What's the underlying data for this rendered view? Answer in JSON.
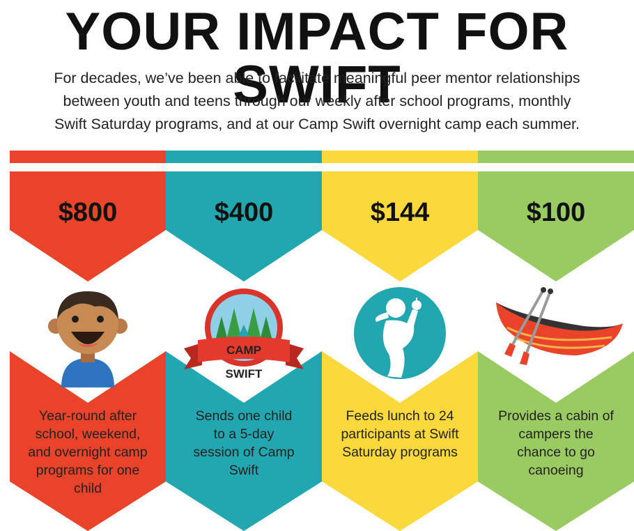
{
  "header": {
    "title": "YOUR IMPACT FOR SWIFT",
    "intro_lines": [
      "For decades, we’ve been able to facilitate meaningful peer mentor relationships",
      "between youth and teens through our weekly after school programs, monthly",
      "Swift Saturday programs, and at our Camp Swift overnight camp each summer."
    ]
  },
  "colors": {
    "red": "#e9432a",
    "teal": "#22a7b0",
    "yellow": "#fbd83c",
    "green": "#9acb62"
  },
  "tiers": [
    {
      "amount": "$800",
      "icon": "smiling-child-icon",
      "description_lines": [
        "Year-round after",
        "school, weekend,",
        "and overnight camp",
        "programs for one",
        "child"
      ]
    },
    {
      "amount": "$400",
      "icon": "camp-swift-badge-icon",
      "badge_lines": [
        "CAMP",
        "SWIFT"
      ],
      "description_lines": [
        "Sends one child",
        "to a 5-day",
        "session of Camp",
        "Swift"
      ]
    },
    {
      "amount": "$144",
      "icon": "person-eating-apple-icon",
      "description_lines": [
        "Feeds lunch to 24",
        "participants at Swift",
        "Saturday programs"
      ]
    },
    {
      "amount": "$100",
      "icon": "canoe-icon",
      "description_lines": [
        "Provides a cabin of",
        "campers the",
        "chance to go",
        "canoeing"
      ]
    }
  ]
}
